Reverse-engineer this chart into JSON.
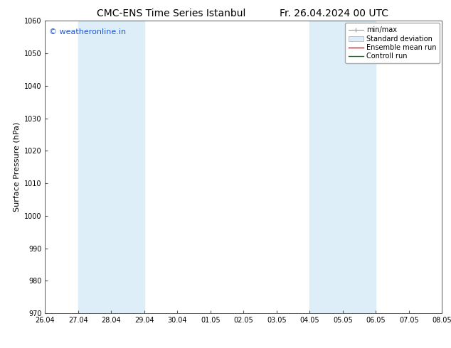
{
  "title_left": "CMC-ENS Time Series Istanbul",
  "title_right": "Fr. 26.04.2024 00 UTC",
  "ylabel": "Surface Pressure (hPa)",
  "ylim": [
    970,
    1060
  ],
  "yticks": [
    970,
    980,
    990,
    1000,
    1010,
    1020,
    1030,
    1040,
    1050,
    1060
  ],
  "xtick_labels": [
    "26.04",
    "27.04",
    "28.04",
    "29.04",
    "30.04",
    "01.05",
    "02.05",
    "03.05",
    "04.05",
    "05.05",
    "06.05",
    "07.05",
    "08.05"
  ],
  "shaded_regions": [
    {
      "xstart": 1,
      "xend": 3,
      "color": "#ddeef8"
    },
    {
      "xstart": 8,
      "xend": 10,
      "color": "#ddeef8"
    }
  ],
  "watermark_text": "© weatheronline.in",
  "watermark_color": "#2255cc",
  "watermark_fontsize": 8,
  "title_fontsize": 10,
  "legend_fontsize": 7,
  "tick_fontsize": 7,
  "ylabel_fontsize": 8,
  "background_color": "#ffffff",
  "plot_bg_color": "#ffffff",
  "spine_color": "#555555",
  "tick_color": "#555555"
}
